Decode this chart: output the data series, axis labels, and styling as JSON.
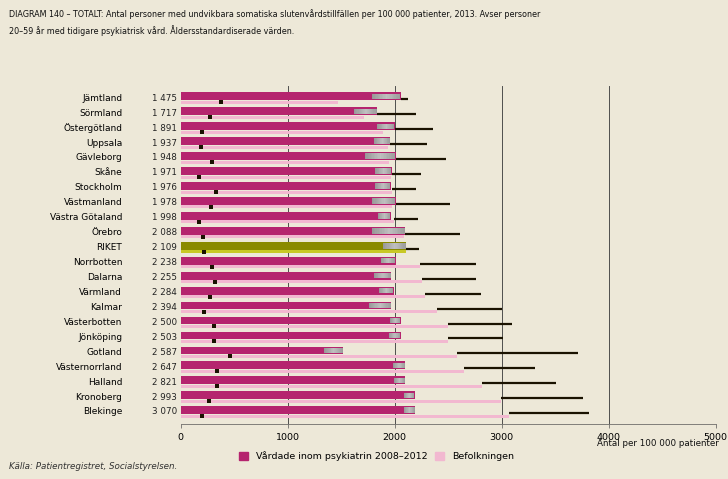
{
  "title_line1": "DIAGRAM 140 – TOTALT: Antal personer med undvikbara somatiska slutenvårdstillfällen per 100 000 patienter, 2013. Avser personer",
  "title_line2": "20–59 år med tidigare psykiatrisk vård. Åldersstandardiserade värden.",
  "source": "Källa: Patientregistret, Socialstyrelsen.",
  "legend_dark": "Vårdade inom psykiatrin 2008–2012",
  "legend_light": "Befolkningen",
  "xlabel_right": "Antal per 100 000 patienter",
  "regions": [
    "Jämtland",
    "Sörmland",
    "Östergötland",
    "Uppsala",
    "Gävleborg",
    "Skåne",
    "Stockholm",
    "Västmanland",
    "Västra Götaland",
    "Örebro",
    "RIKET",
    "Norrbotten",
    "Dalarna",
    "Värmland",
    "Kalmar",
    "Västerbotten",
    "Jönköping",
    "Gotland",
    "Västernorrland",
    "Halland",
    "Kronoberg",
    "Blekinge"
  ],
  "label_values": [
    "1 475",
    "1 717",
    "1 891",
    "1 937",
    "1 948",
    "1 971",
    "1 976",
    "1 978",
    "1 998",
    "2 088",
    "2 109",
    "2 238",
    "2 255",
    "2 284",
    "2 394",
    "2 500",
    "2 503",
    "2 587",
    "2 647",
    "2 821",
    "2 993",
    "3 070"
  ],
  "dark_bar_vals": [
    2060,
    1840,
    2000,
    1960,
    2010,
    1975,
    1965,
    2010,
    1965,
    2100,
    2109,
    2010,
    1970,
    1990,
    1970,
    2060,
    2060,
    1520,
    2100,
    2100,
    2190,
    2195
  ],
  "light_bar_vals": [
    1475,
    1717,
    1891,
    1937,
    1948,
    1971,
    1976,
    1978,
    1998,
    2088,
    2109,
    2238,
    2255,
    2284,
    2394,
    2500,
    2503,
    2587,
    2647,
    2821,
    2993,
    3070
  ],
  "ci_start": [
    1790,
    1620,
    1840,
    1810,
    1720,
    1820,
    1820,
    1790,
    1845,
    1790,
    1890,
    1870,
    1810,
    1855,
    1760,
    1960,
    1945,
    1340,
    1985,
    1995,
    2085,
    2085
  ],
  "ci_end": [
    2050,
    1835,
    1995,
    1955,
    2005,
    1970,
    1960,
    2005,
    1960,
    2095,
    2104,
    2005,
    1965,
    1985,
    1965,
    2055,
    2055,
    1515,
    2095,
    2095,
    2185,
    2190
  ],
  "marker_x": [
    380,
    275,
    205,
    195,
    295,
    175,
    335,
    280,
    170,
    210,
    215,
    295,
    325,
    275,
    215,
    310,
    315,
    465,
    340,
    340,
    265,
    205
  ],
  "whisker_end": [
    2130,
    2200,
    2360,
    2300,
    2480,
    2250,
    2200,
    2520,
    2220,
    2610,
    2230,
    2760,
    2760,
    2810,
    3000,
    3100,
    3010,
    3710,
    3310,
    3510,
    3760,
    3820
  ],
  "bg_color": "#ede8d8",
  "dark_color": "#b5246e",
  "light_color": "#f2b8d0",
  "riket_dark": "#8a8a00",
  "riket_light": "#c8c825",
  "ci_color_light": "#d0d0d0",
  "ci_color_dark": "#888888",
  "marker_color": "#1a1200",
  "whisker_color": "#1a1200",
  "xlim_max": 5000,
  "xticks": [
    0,
    1000,
    2000,
    3000,
    4000,
    5000
  ],
  "vlines": [
    1000,
    2000,
    3000,
    4000
  ]
}
